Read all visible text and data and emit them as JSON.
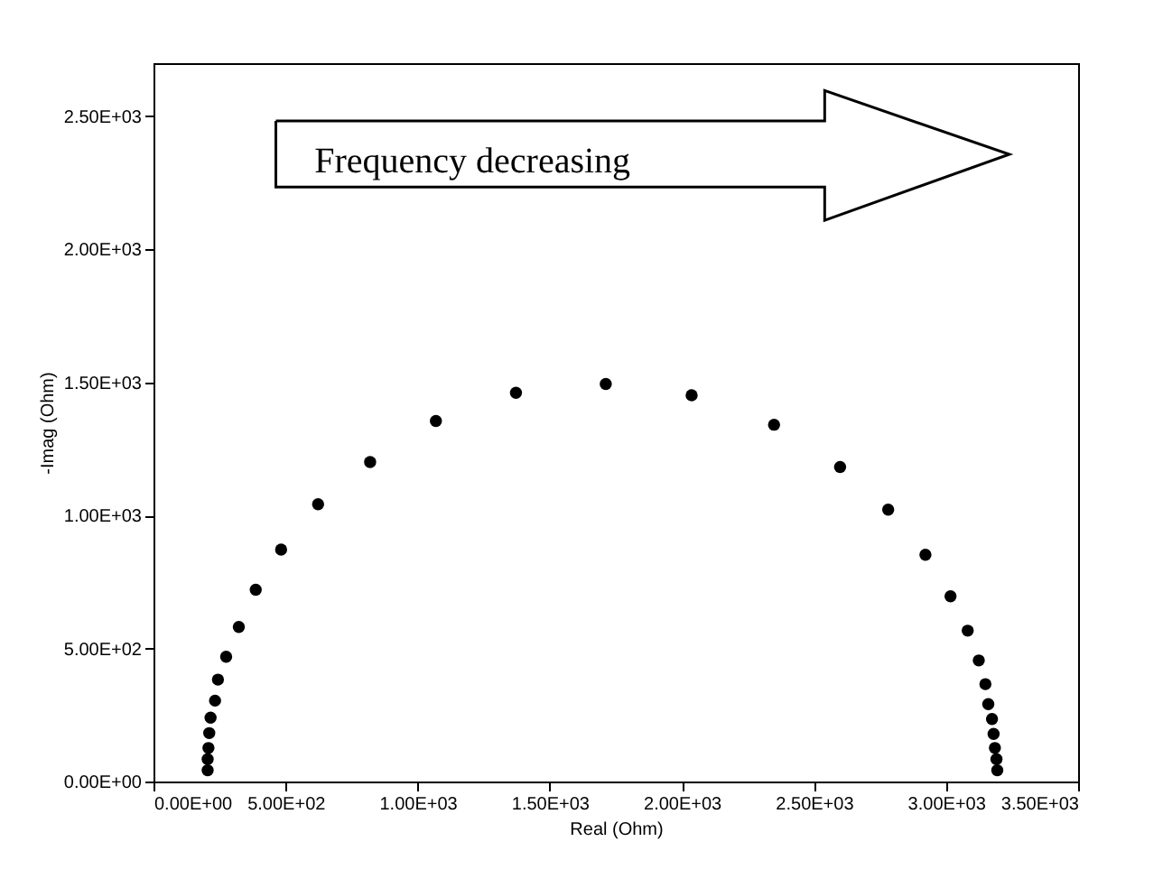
{
  "chart_data": {
    "type": "scatter",
    "xlabel": "Real (Ohm)",
    "ylabel": "-Imag (Ohm)",
    "marker": "circle",
    "grid": false,
    "annotations": [
      "Frequency decreasing"
    ],
    "xlim": [
      0,
      3500
    ],
    "ylim": [
      0,
      2700
    ],
    "xticks": [
      {
        "value": 0,
        "label": "0.00E+00"
      },
      {
        "value": 500,
        "label": "5.00E+02"
      },
      {
        "value": 1000,
        "label": "1.00E+03"
      },
      {
        "value": 1500,
        "label": "1.50E+03"
      },
      {
        "value": 2000,
        "label": "2.00E+03"
      },
      {
        "value": 2500,
        "label": "2.50E+03"
      },
      {
        "value": 3000,
        "label": "3.00E+03"
      },
      {
        "value": 3500,
        "label": "3.50E+03"
      }
    ],
    "yticks": [
      {
        "value": 0,
        "label": "0.00E+00"
      },
      {
        "value": 500,
        "label": "5.00E+02"
      },
      {
        "value": 1000,
        "label": "1.00E+03"
      },
      {
        "value": 1500,
        "label": "1.50E+03"
      },
      {
        "value": 2000,
        "label": "2.00E+03"
      },
      {
        "value": 2500,
        "label": "2.50E+03"
      }
    ],
    "series": [
      {
        "color": "#000000",
        "x": [
          205,
          205,
          208,
          211,
          216,
          233,
          244,
          275,
          323,
          387,
          483,
          623,
          820,
          1069,
          1372,
          1712,
          2037,
          2349,
          2599,
          2781,
          2922,
          3017,
          3082,
          3124,
          3149,
          3160,
          3174,
          3180,
          3185,
          3191,
          3194
        ],
        "values": [
          42,
          84,
          126,
          182,
          240,
          304,
          383,
          469,
          581,
          721,
          872,
          1042,
          1201,
          1355,
          1461,
          1494,
          1452,
          1341,
          1182,
          1022,
          852,
          696,
          567,
          455,
          366,
          291,
          235,
          179,
          126,
          84,
          42
        ]
      }
    ]
  }
}
